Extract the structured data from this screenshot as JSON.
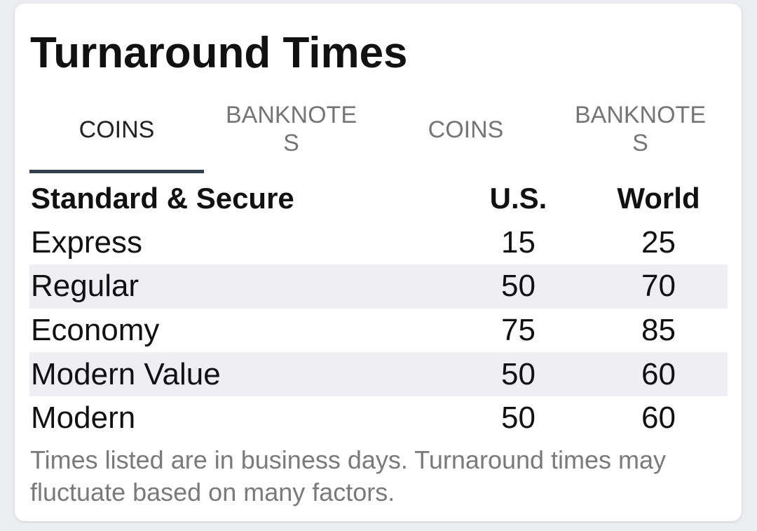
{
  "title": "Turnaround Times",
  "tabs": [
    {
      "label": "COINS",
      "active": true
    },
    {
      "label": "BANKNOTES",
      "active": false
    },
    {
      "label": "COINS",
      "active": false
    },
    {
      "label": "BANKNOTES",
      "active": false
    }
  ],
  "table": {
    "headers": {
      "tier": "Standard & Secure",
      "us": "U.S.",
      "world": "World"
    },
    "rows": [
      {
        "tier": "Express",
        "us": "15",
        "world": "25"
      },
      {
        "tier": "Regular",
        "us": "50",
        "world": "70"
      },
      {
        "tier": "Economy",
        "us": "75",
        "world": "85"
      },
      {
        "tier": "Modern Value",
        "us": "50",
        "world": "60"
      },
      {
        "tier": "Modern",
        "us": "50",
        "world": "60"
      }
    ]
  },
  "footnote": "Times listed are in business days. Turnaround times may fluctuate based on many factors.",
  "colors": {
    "tab_indicator": "#34404e",
    "row_alt": "#efeff3"
  }
}
